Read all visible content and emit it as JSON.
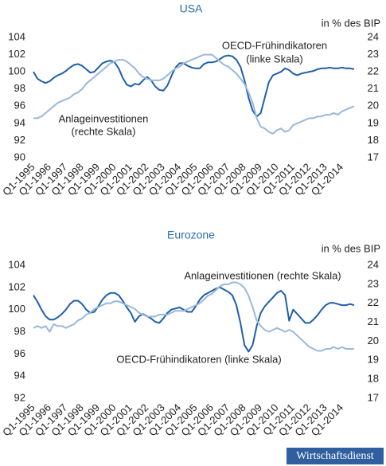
{
  "chart_data": [
    {
      "type": "line",
      "title": "USA",
      "y2_label": "in % des BIP",
      "categories": [
        "Q1-1995",
        null,
        null,
        null,
        "Q1-1996",
        null,
        null,
        null,
        "Q1-1997",
        null,
        null,
        null,
        "Q1-1998",
        null,
        null,
        null,
        "Q1-1999",
        null,
        null,
        null,
        "Q1-2000",
        null,
        null,
        null,
        "Q1-2001",
        null,
        null,
        null,
        "Q1-2002",
        null,
        null,
        null,
        "Q1-2003",
        null,
        null,
        null,
        "Q1-2004",
        null,
        null,
        null,
        "Q1-2005",
        null,
        null,
        null,
        "Q1-2006",
        null,
        null,
        null,
        "Q1-2007",
        null,
        null,
        null,
        "Q1-2008",
        null,
        null,
        null,
        "Q1-2009",
        null,
        null,
        null,
        "Q1-2010",
        null,
        null,
        null,
        "Q1-2011",
        null,
        null,
        null,
        "Q1-2012",
        null,
        null,
        null,
        "Q1-2013",
        null,
        null,
        null,
        "Q1-2014",
        null,
        null,
        null
      ],
      "ylim": [
        90,
        104
      ],
      "yticks": [
        90,
        92,
        94,
        96,
        98,
        100,
        102,
        104
      ],
      "y2lim": [
        17,
        24
      ],
      "y2ticks": [
        17,
        18,
        19,
        20,
        21,
        22,
        23,
        24
      ],
      "grid": false,
      "series": [
        {
          "name": [
            "OECD-Frühindikatoren",
            "(linke Skala)"
          ],
          "color": "#1f5fa8",
          "values": [
            100.0,
            99.2,
            98.9,
            98.7,
            98.9,
            99.3,
            99.6,
            99.8,
            100.1,
            100.5,
            100.8,
            100.9,
            100.7,
            100.3,
            99.9,
            100.0,
            100.5,
            101.0,
            101.2,
            101.3,
            101.1,
            100.4,
            99.3,
            98.5,
            98.3,
            98.6,
            98.5,
            99.0,
            99.4,
            99.0,
            98.3,
            97.9,
            97.8,
            98.4,
            99.5,
            100.5,
            101.0,
            101.0,
            100.7,
            100.5,
            100.4,
            100.4,
            100.9,
            101.1,
            101.1,
            101.2,
            101.5,
            101.8,
            101.9,
            101.8,
            101.4,
            100.6,
            99.0,
            97.0,
            95.5,
            94.8,
            95.2,
            97.0,
            98.8,
            99.6,
            99.8,
            100.0,
            100.4,
            100.2,
            99.8,
            99.6,
            99.8,
            99.9,
            100.0,
            100.1,
            100.3,
            100.4,
            100.4,
            100.5,
            100.4,
            100.4,
            100.5,
            100.4,
            100.4,
            100.3
          ]
        },
        {
          "name": [
            "Anlageinvestitionen",
            "(rechte Skala)"
          ],
          "color": "#9bb8d9",
          "axis": "y2",
          "values": [
            19.3,
            19.3,
            19.4,
            19.6,
            19.8,
            20.0,
            20.2,
            20.3,
            20.4,
            20.5,
            20.7,
            20.8,
            21.0,
            21.3,
            21.5,
            21.7,
            21.9,
            22.1,
            22.3,
            22.5,
            22.6,
            22.7,
            22.7,
            22.6,
            22.4,
            22.2,
            21.9,
            21.7,
            21.6,
            21.5,
            21.5,
            21.5,
            21.6,
            21.8,
            22.0,
            22.2,
            22.3,
            22.5,
            22.6,
            22.7,
            22.8,
            22.9,
            23.0,
            23.0,
            23.0,
            22.8,
            22.6,
            22.4,
            22.3,
            22.1,
            21.9,
            21.6,
            21.3,
            20.8,
            20.2,
            19.3,
            18.8,
            18.7,
            18.5,
            18.4,
            18.6,
            18.7,
            18.5,
            18.6,
            18.9,
            19.0,
            19.1,
            19.2,
            19.3,
            19.3,
            19.4,
            19.4,
            19.5,
            19.5,
            19.6,
            19.5,
            19.7,
            19.8,
            19.9,
            20.0
          ]
        }
      ]
    },
    {
      "type": "line",
      "title": "Eurozone",
      "y2_label": "in % des BIP",
      "categories": [
        "Q1-1995",
        null,
        null,
        null,
        "Q1-1996",
        null,
        null,
        null,
        "Q1-1997",
        null,
        null,
        null,
        "Q1-1998",
        null,
        null,
        null,
        "Q1-1999",
        null,
        null,
        null,
        "Q1-2000",
        null,
        null,
        null,
        "Q1-2001",
        null,
        null,
        null,
        "Q1-2002",
        null,
        null,
        null,
        "Q1-2003",
        null,
        null,
        null,
        "Q1-2004",
        null,
        null,
        null,
        "Q1-2005",
        null,
        null,
        null,
        "Q1-2006",
        null,
        null,
        null,
        "Q1-2007",
        null,
        null,
        null,
        "Q1-2008",
        null,
        null,
        null,
        "Q1-2009",
        null,
        null,
        null,
        "Q1-2010",
        null,
        null,
        null,
        "Q1-2011",
        null,
        null,
        null,
        "Q1-2012",
        null,
        null,
        null,
        "Q1-2013",
        null,
        null,
        null,
        "Q1-2014",
        null,
        null,
        null
      ],
      "ylim": [
        92,
        104
      ],
      "yticks": [
        92,
        94,
        96,
        98,
        100,
        102,
        104
      ],
      "y2lim": [
        17,
        24
      ],
      "y2ticks": [
        17,
        18,
        19,
        20,
        21,
        22,
        23,
        24
      ],
      "grid": false,
      "series": [
        {
          "name": [
            "OECD-Frühindikatoren (linke Skala)"
          ],
          "color": "#1f5fa8",
          "values": [
            101.3,
            100.7,
            100.0,
            99.4,
            99.1,
            99.1,
            99.3,
            99.6,
            100.0,
            100.5,
            100.8,
            100.8,
            100.5,
            100.0,
            99.7,
            99.8,
            100.3,
            100.9,
            101.3,
            101.5,
            101.5,
            101.3,
            100.8,
            100.2,
            99.7,
            98.9,
            99.4,
            99.6,
            99.4,
            99.2,
            98.9,
            98.8,
            99.2,
            99.7,
            100.0,
            100.1,
            100.2,
            100.0,
            99.8,
            99.8,
            100.3,
            100.9,
            101.3,
            101.5,
            101.7,
            101.9,
            102.0,
            101.8,
            101.6,
            101.3,
            100.4,
            98.8,
            96.8,
            96.2,
            96.8,
            98.5,
            99.7,
            100.3,
            100.7,
            101.1,
            101.5,
            101.7,
            101.3,
            99.0,
            100.0,
            99.6,
            99.2,
            98.8,
            98.8,
            99.1,
            99.5,
            100.0,
            100.4,
            100.6,
            100.6,
            100.5,
            100.4,
            100.4,
            100.5,
            100.4
          ]
        },
        {
          "name": [
            "Anlageinvestitionen (rechte Skala)"
          ],
          "color": "#9bb8d9",
          "axis": "y2",
          "values": [
            20.7,
            20.8,
            20.7,
            20.8,
            20.5,
            20.9,
            20.8,
            20.8,
            20.7,
            20.8,
            20.9,
            21.1,
            21.2,
            21.4,
            21.5,
            21.7,
            21.8,
            21.9,
            22.0,
            22.0,
            22.1,
            22.1,
            22.0,
            21.9,
            21.8,
            21.7,
            21.5,
            21.4,
            21.3,
            21.3,
            21.3,
            21.4,
            21.4,
            21.4,
            21.5,
            21.6,
            21.6,
            21.6,
            21.7,
            21.8,
            21.9,
            22.0,
            22.2,
            22.4,
            22.5,
            22.7,
            22.9,
            23.0,
            23.0,
            23.1,
            23.1,
            23.0,
            22.8,
            22.4,
            21.8,
            21.1,
            20.8,
            20.6,
            20.5,
            20.6,
            20.7,
            20.6,
            20.5,
            20.6,
            20.5,
            20.3,
            20.1,
            19.9,
            19.7,
            19.6,
            19.5,
            19.5,
            19.6,
            19.6,
            19.7,
            19.6,
            19.7,
            19.6,
            19.6,
            19.6
          ]
        }
      ]
    }
  ],
  "footer": {
    "brand": "Wirtschaftsdienst"
  }
}
